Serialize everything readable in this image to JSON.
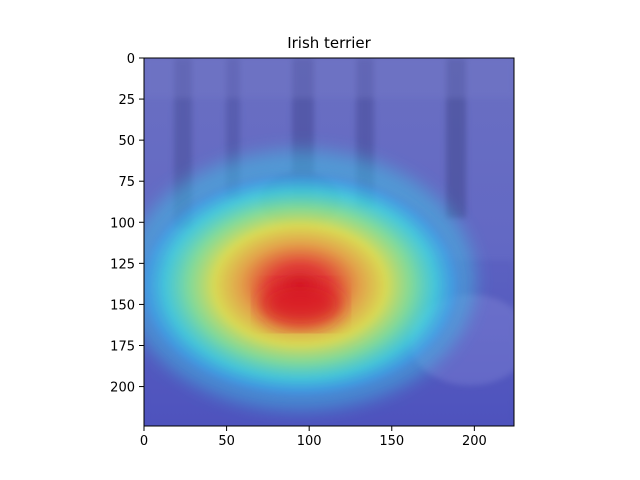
{
  "chart_data": {
    "type": "heatmap",
    "title": "Irish terrier",
    "xlabel": "",
    "ylabel": "",
    "xlim": [
      0,
      224
    ],
    "ylim": [
      224,
      0
    ],
    "x_ticks": [
      0,
      50,
      100,
      150,
      200
    ],
    "y_ticks": [
      0,
      25,
      50,
      75,
      100,
      125,
      150,
      175,
      200
    ],
    "colormap": "jet",
    "grid": false,
    "hotspot": {
      "x": 95,
      "y": 150
    },
    "colors": {
      "background_overlay": "#5a5fc8",
      "hot": "#e8242a",
      "warm": "#f2e43a",
      "cool": "#3fe6e0"
    }
  }
}
